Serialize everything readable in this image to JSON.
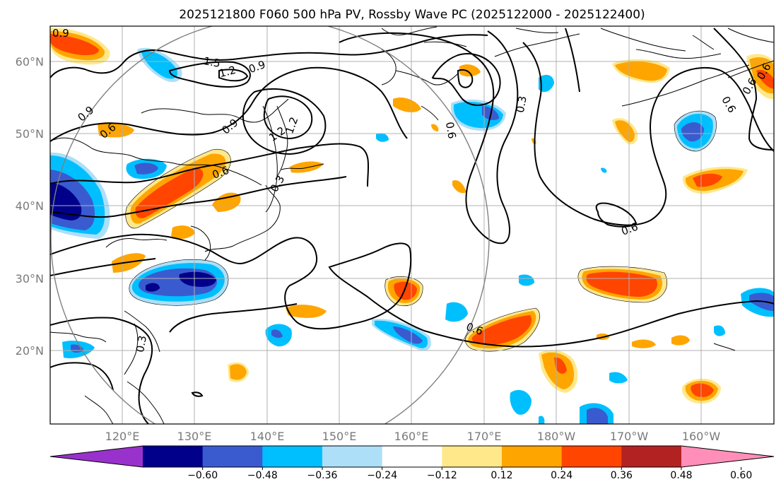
{
  "title": "2025121800 F060 500 hPa PV, Rossby Wave PC (2025122000 - 2025122400)",
  "lat_labels": [
    "60°N",
    "50°N",
    "40°N",
    "30°N",
    "20°N"
  ],
  "lon_labels": [
    "120°E",
    "130°E",
    "140°E",
    "150°E",
    "160°E",
    "170°E",
    "180°W",
    "170°W",
    "160°W"
  ],
  "colorbar": {
    "ticks": [
      "−0.60",
      "−0.48",
      "−0.36",
      "−0.24",
      "−0.12",
      "0.12",
      "0.24",
      "0.36",
      "0.48",
      "0.60"
    ],
    "colors": [
      "#9932CC",
      "#00008B",
      "#3A5BD0",
      "#00BFFF",
      "#ADDFF8",
      "#FFFFFF",
      "#FFE88A",
      "#FFA500",
      "#FF4500",
      "#B22222",
      "#FF8FB8"
    ]
  },
  "contour_labels": [
    "0.9",
    "1.5",
    "1.2",
    "0.9",
    "0.9",
    "0.6",
    "0.9",
    "1.2",
    "0.6",
    "0.3",
    "1.2",
    "0.3",
    "0.6",
    "0.6",
    "0.6",
    "0.3",
    "0.6",
    "0.6",
    "0.6"
  ]
}
